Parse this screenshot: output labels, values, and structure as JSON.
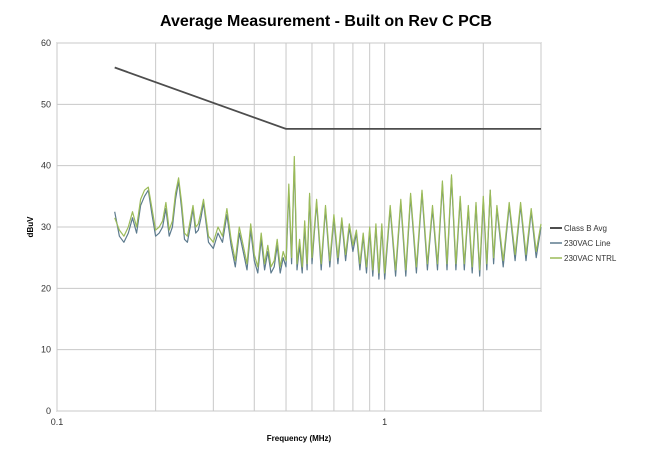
{
  "chart_data": {
    "type": "line",
    "title": "Average Measurement - Built on Rev C PCB",
    "xlabel": "Frequency (MHz)",
    "ylabel": "dBuV",
    "x_scale": "log",
    "xlim": [
      0.1,
      3
    ],
    "ylim": [
      0,
      60
    ],
    "x_ticks": [
      0.1,
      1
    ],
    "x_tick_labels": [
      "0.1",
      "1"
    ],
    "y_ticks": [
      0,
      10,
      20,
      30,
      40,
      50,
      60
    ],
    "grid": true,
    "legend_position": "right",
    "series": [
      {
        "name": "Class B Avg",
        "color": "#4d4d4d",
        "x": [
          0.15,
          0.5,
          3
        ],
        "y": [
          56,
          46,
          46
        ]
      },
      {
        "name": "230VAC Line",
        "color": "#5d7b8e",
        "x": [
          0.15,
          0.155,
          0.16,
          0.165,
          0.17,
          0.175,
          0.18,
          0.185,
          0.19,
          0.195,
          0.2,
          0.205,
          0.21,
          0.215,
          0.22,
          0.225,
          0.23,
          0.235,
          0.24,
          0.245,
          0.25,
          0.255,
          0.26,
          0.265,
          0.27,
          0.275,
          0.28,
          0.29,
          0.3,
          0.31,
          0.32,
          0.33,
          0.34,
          0.35,
          0.36,
          0.37,
          0.38,
          0.39,
          0.4,
          0.41,
          0.42,
          0.43,
          0.44,
          0.45,
          0.46,
          0.47,
          0.48,
          0.49,
          0.5,
          0.51,
          0.52,
          0.53,
          0.54,
          0.55,
          0.56,
          0.57,
          0.58,
          0.59,
          0.6,
          0.62,
          0.64,
          0.66,
          0.68,
          0.7,
          0.72,
          0.74,
          0.76,
          0.78,
          0.8,
          0.82,
          0.84,
          0.86,
          0.88,
          0.9,
          0.92,
          0.94,
          0.96,
          0.98,
          1.0,
          1.04,
          1.08,
          1.12,
          1.16,
          1.2,
          1.25,
          1.3,
          1.35,
          1.4,
          1.45,
          1.5,
          1.55,
          1.6,
          1.65,
          1.7,
          1.75,
          1.8,
          1.85,
          1.9,
          1.95,
          2.0,
          2.05,
          2.1,
          2.15,
          2.2,
          2.3,
          2.4,
          2.5,
          2.6,
          2.7,
          2.8,
          2.9,
          3.0
        ],
        "y": [
          32.5,
          28.5,
          27.5,
          29,
          31.5,
          29,
          33.5,
          35,
          36,
          32,
          28.5,
          29,
          30,
          33,
          28.5,
          30,
          34.5,
          37.5,
          33,
          28,
          27.5,
          30,
          33,
          29,
          29.5,
          31.5,
          34,
          27.5,
          26.5,
          29,
          27.5,
          32,
          27,
          23.5,
          29,
          26,
          23,
          29.5,
          24.5,
          22.5,
          28,
          23,
          26,
          22.5,
          23.5,
          27,
          22.5,
          25,
          23.5,
          36,
          24,
          40.5,
          23,
          27,
          22.5,
          30,
          23,
          35,
          24,
          34,
          23,
          33,
          23.5,
          31.5,
          24,
          31,
          24.5,
          30,
          26,
          29,
          23,
          28.5,
          22.5,
          29.5,
          22,
          30,
          21.5,
          30,
          21.5,
          33,
          22,
          34,
          22,
          35,
          22.5,
          35.5,
          23,
          33,
          23,
          37,
          23,
          38,
          23,
          34.5,
          23,
          33,
          22.5,
          33.5,
          22,
          34.5,
          23,
          36,
          24,
          33,
          23.5,
          33.5,
          24.5,
          33.5,
          24.5,
          32.5,
          25,
          30
        ]
      },
      {
        "name": "230VAC NTRL",
        "color": "#9bbb59",
        "x": [
          0.15,
          0.155,
          0.16,
          0.165,
          0.17,
          0.175,
          0.18,
          0.185,
          0.19,
          0.195,
          0.2,
          0.205,
          0.21,
          0.215,
          0.22,
          0.225,
          0.23,
          0.235,
          0.24,
          0.245,
          0.25,
          0.255,
          0.26,
          0.265,
          0.27,
          0.275,
          0.28,
          0.29,
          0.3,
          0.31,
          0.32,
          0.33,
          0.34,
          0.35,
          0.36,
          0.37,
          0.38,
          0.39,
          0.4,
          0.41,
          0.42,
          0.43,
          0.44,
          0.45,
          0.46,
          0.47,
          0.48,
          0.49,
          0.5,
          0.51,
          0.52,
          0.53,
          0.54,
          0.55,
          0.56,
          0.57,
          0.58,
          0.59,
          0.6,
          0.62,
          0.64,
          0.66,
          0.68,
          0.7,
          0.72,
          0.74,
          0.76,
          0.78,
          0.8,
          0.82,
          0.84,
          0.86,
          0.88,
          0.9,
          0.92,
          0.94,
          0.96,
          0.98,
          1.0,
          1.04,
          1.08,
          1.12,
          1.16,
          1.2,
          1.25,
          1.3,
          1.35,
          1.4,
          1.45,
          1.5,
          1.55,
          1.6,
          1.65,
          1.7,
          1.75,
          1.8,
          1.85,
          1.9,
          1.95,
          2.0,
          2.05,
          2.1,
          2.15,
          2.2,
          2.3,
          2.4,
          2.5,
          2.6,
          2.7,
          2.8,
          2.9,
          3.0
        ],
        "y": [
          31.5,
          29.5,
          28.5,
          30,
          32.5,
          30,
          34.5,
          36,
          36.5,
          33,
          29.5,
          30,
          31,
          34,
          29.5,
          31,
          35.5,
          38,
          34,
          29,
          28.5,
          31,
          33.5,
          30,
          30.5,
          32.5,
          34.5,
          28.5,
          27.5,
          30,
          28.5,
          33,
          28,
          24.5,
          30,
          27,
          24,
          30.5,
          25.5,
          23.5,
          29,
          24,
          27,
          23.5,
          24.5,
          28,
          23.5,
          26,
          24.5,
          37,
          25,
          41.5,
          24,
          28,
          23.5,
          31,
          24,
          35.5,
          25,
          34.5,
          24,
          33.5,
          24.5,
          32,
          25,
          31.5,
          25.5,
          30.5,
          27,
          29.5,
          24,
          29,
          23.5,
          30,
          23,
          30.5,
          22.5,
          30.5,
          22.5,
          33.5,
          23,
          34.5,
          23,
          35.5,
          23.5,
          36,
          24,
          33.5,
          24,
          37.5,
          24,
          38.5,
          24,
          35,
          24,
          33.5,
          23.5,
          34,
          23,
          35,
          24,
          36,
          25,
          33.5,
          24.5,
          34,
          25.5,
          34,
          25.5,
          33,
          26,
          30.5
        ]
      }
    ]
  }
}
